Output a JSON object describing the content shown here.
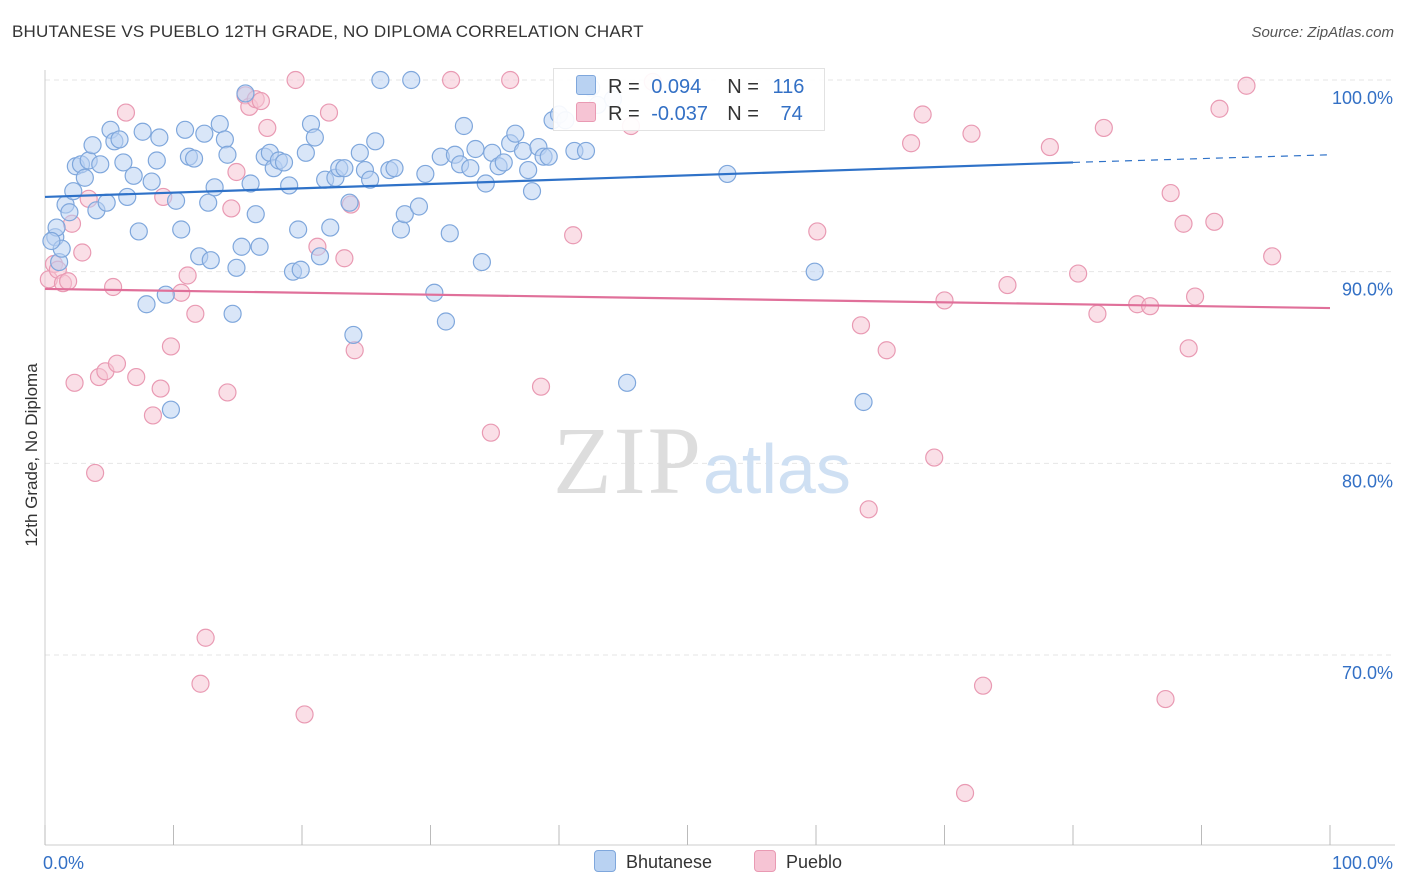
{
  "title": "BHUTANESE VS PUEBLO 12TH GRADE, NO DIPLOMA CORRELATION CHART",
  "source": "Source: ZipAtlas.com",
  "watermark": {
    "zip": "ZIP",
    "atlas": "atlas"
  },
  "legend_top": [
    {
      "r_label": "R =",
      "r_value": "0.094",
      "n_label": "N =",
      "n_value": "116"
    },
    {
      "r_label": "R =",
      "r_value": "-0.037",
      "n_label": "N =",
      "n_value": "74"
    }
  ],
  "legend_bottom": [
    "Bhutanese",
    "Pueblo"
  ],
  "colors": {
    "blue_fill": "#b9d2f2",
    "blue_stroke": "#7fa7dc",
    "blue_line": "#2f72c8",
    "pink_fill": "#f6c4d4",
    "pink_stroke": "#e99ab3",
    "pink_line": "#e0709a",
    "axis_label": "#3370c5",
    "grid": "#e6e6e6"
  },
  "chart_data": {
    "type": "scatter",
    "title": "BHUTANESE VS PUEBLO 12TH GRADE, NO DIPLOMA CORRELATION CHART",
    "xlabel": "",
    "ylabel": "12th Grade, No Diploma",
    "xlim": [
      0,
      100
    ],
    "ylim": [
      60,
      101
    ],
    "x_tick_labels": [
      {
        "value": 0,
        "label": "0.0%"
      },
      {
        "value": 100,
        "label": "100.0%"
      }
    ],
    "y_tick_labels": [
      {
        "value": 100,
        "label": "100.0%"
      },
      {
        "value": 90,
        "label": "90.0%"
      },
      {
        "value": 80,
        "label": "80.0%"
      },
      {
        "value": 70,
        "label": "70.0%"
      }
    ],
    "series": [
      {
        "name": "Bhutanese",
        "R": 0.094,
        "N": 116,
        "trend": {
          "x0": 0,
          "y0": 93.9,
          "x1": 80,
          "y1": 95.7,
          "dash_to_x": 100,
          "dash_to_y": 96.1
        },
        "points": [
          [
            0.8,
            91.8
          ],
          [
            0.9,
            92.3
          ],
          [
            1.1,
            90.5
          ],
          [
            1.3,
            91.2
          ],
          [
            1.6,
            93.5
          ],
          [
            1.9,
            93.1
          ],
          [
            2.2,
            94.2
          ],
          [
            2.4,
            95.5
          ],
          [
            2.8,
            95.6
          ],
          [
            3.1,
            94.9
          ],
          [
            3.4,
            95.8
          ],
          [
            3.7,
            96.6
          ],
          [
            4.0,
            93.2
          ],
          [
            4.3,
            95.6
          ],
          [
            4.8,
            93.6
          ],
          [
            5.1,
            97.4
          ],
          [
            5.4,
            96.8
          ],
          [
            5.8,
            96.9
          ],
          [
            6.1,
            95.7
          ],
          [
            6.4,
            93.9
          ],
          [
            6.9,
            95.0
          ],
          [
            7.3,
            92.1
          ],
          [
            7.6,
            97.3
          ],
          [
            7.9,
            88.3
          ],
          [
            8.3,
            94.7
          ],
          [
            8.7,
            95.8
          ],
          [
            8.9,
            97.0
          ],
          [
            9.4,
            88.8
          ],
          [
            9.8,
            82.8
          ],
          [
            10.2,
            93.7
          ],
          [
            10.6,
            92.2
          ],
          [
            10.9,
            97.4
          ],
          [
            11.2,
            96.0
          ],
          [
            11.6,
            95.9
          ],
          [
            12.0,
            90.8
          ],
          [
            12.4,
            97.2
          ],
          [
            12.7,
            93.6
          ],
          [
            12.9,
            90.6
          ],
          [
            13.2,
            94.4
          ],
          [
            13.6,
            97.7
          ],
          [
            14.0,
            96.9
          ],
          [
            14.2,
            96.1
          ],
          [
            14.6,
            87.8
          ],
          [
            14.9,
            90.2
          ],
          [
            15.3,
            91.3
          ],
          [
            15.6,
            99.3
          ],
          [
            16.0,
            94.6
          ],
          [
            16.4,
            93.0
          ],
          [
            16.7,
            91.3
          ],
          [
            17.1,
            96.0
          ],
          [
            17.5,
            96.2
          ],
          [
            17.8,
            95.4
          ],
          [
            18.2,
            95.8
          ],
          [
            18.6,
            95.7
          ],
          [
            19.0,
            94.5
          ],
          [
            19.3,
            90.0
          ],
          [
            19.7,
            92.2
          ],
          [
            19.9,
            90.1
          ],
          [
            20.3,
            96.2
          ],
          [
            20.7,
            97.7
          ],
          [
            21.0,
            97.0
          ],
          [
            21.4,
            90.8
          ],
          [
            21.8,
            94.8
          ],
          [
            22.2,
            92.3
          ],
          [
            22.6,
            94.9
          ],
          [
            22.9,
            95.4
          ],
          [
            23.3,
            95.4
          ],
          [
            23.7,
            93.6
          ],
          [
            24.0,
            86.7
          ],
          [
            24.5,
            96.2
          ],
          [
            24.9,
            95.3
          ],
          [
            25.3,
            94.8
          ],
          [
            25.7,
            96.8
          ],
          [
            26.1,
            100.0
          ],
          [
            26.8,
            95.3
          ],
          [
            27.2,
            95.4
          ],
          [
            27.7,
            92.2
          ],
          [
            28.0,
            93.0
          ],
          [
            28.5,
            100.0
          ],
          [
            29.1,
            93.4
          ],
          [
            29.6,
            95.1
          ],
          [
            30.3,
            88.9
          ],
          [
            30.8,
            96.0
          ],
          [
            31.2,
            87.4
          ],
          [
            31.5,
            92.0
          ],
          [
            31.9,
            96.1
          ],
          [
            32.3,
            95.6
          ],
          [
            32.6,
            97.6
          ],
          [
            33.1,
            95.4
          ],
          [
            33.5,
            96.4
          ],
          [
            34.0,
            90.5
          ],
          [
            34.3,
            94.6
          ],
          [
            34.8,
            96.2
          ],
          [
            35.3,
            95.5
          ],
          [
            35.7,
            95.7
          ],
          [
            36.2,
            96.7
          ],
          [
            36.6,
            97.2
          ],
          [
            37.2,
            96.3
          ],
          [
            37.6,
            95.3
          ],
          [
            37.9,
            94.2
          ],
          [
            38.4,
            96.5
          ],
          [
            38.8,
            96.0
          ],
          [
            39.2,
            96.0
          ],
          [
            39.5,
            97.9
          ],
          [
            40.0,
            98.2
          ],
          [
            40.5,
            97.9
          ],
          [
            41.2,
            96.3
          ],
          [
            42.1,
            96.3
          ],
          [
            42.5,
            99.6
          ],
          [
            43.0,
            98.7
          ],
          [
            44.2,
            99.0
          ],
          [
            45.3,
            84.2
          ],
          [
            53.1,
            95.1
          ],
          [
            59.9,
            90.0
          ],
          [
            63.7,
            83.2
          ],
          [
            0.5,
            91.6
          ]
        ]
      },
      {
        "name": "Pueblo",
        "R": -0.037,
        "N": 74,
        "trend": {
          "x0": 0,
          "y0": 89.1,
          "x1": 100,
          "y1": 88.1
        },
        "points": [
          [
            0.3,
            89.6
          ],
          [
            0.7,
            90.4
          ],
          [
            1.0,
            90.1
          ],
          [
            1.4,
            89.4
          ],
          [
            1.8,
            89.5
          ],
          [
            2.1,
            92.5
          ],
          [
            2.3,
            84.2
          ],
          [
            2.9,
            91.0
          ],
          [
            3.4,
            93.8
          ],
          [
            3.9,
            79.5
          ],
          [
            4.2,
            84.5
          ],
          [
            4.7,
            84.8
          ],
          [
            5.3,
            89.2
          ],
          [
            5.6,
            85.2
          ],
          [
            6.3,
            98.3
          ],
          [
            7.1,
            84.5
          ],
          [
            8.4,
            82.5
          ],
          [
            9.0,
            83.9
          ],
          [
            9.2,
            93.9
          ],
          [
            9.8,
            86.1
          ],
          [
            10.6,
            88.9
          ],
          [
            11.1,
            89.8
          ],
          [
            11.7,
            87.8
          ],
          [
            12.1,
            68.5
          ],
          [
            12.5,
            70.9
          ],
          [
            14.2,
            83.7
          ],
          [
            14.5,
            93.3
          ],
          [
            14.9,
            95.2
          ],
          [
            15.6,
            99.2
          ],
          [
            15.9,
            98.6
          ],
          [
            16.4,
            99.0
          ],
          [
            16.8,
            98.9
          ],
          [
            17.3,
            97.5
          ],
          [
            19.5,
            100.0
          ],
          [
            20.2,
            66.9
          ],
          [
            21.2,
            91.3
          ],
          [
            22.1,
            98.3
          ],
          [
            23.3,
            90.7
          ],
          [
            23.8,
            93.5
          ],
          [
            24.1,
            85.9
          ],
          [
            31.6,
            100.0
          ],
          [
            34.7,
            81.6
          ],
          [
            36.2,
            100.0
          ],
          [
            38.6,
            84.0
          ],
          [
            41.1,
            91.9
          ],
          [
            45.6,
            97.6
          ],
          [
            47.3,
            99.9
          ],
          [
            60.1,
            92.1
          ],
          [
            63.5,
            87.2
          ],
          [
            64.1,
            77.6
          ],
          [
            65.5,
            85.9
          ],
          [
            67.4,
            96.7
          ],
          [
            68.3,
            98.2
          ],
          [
            69.2,
            80.3
          ],
          [
            70.0,
            88.5
          ],
          [
            71.6,
            62.8
          ],
          [
            72.1,
            97.2
          ],
          [
            73.0,
            68.4
          ],
          [
            74.9,
            89.3
          ],
          [
            78.2,
            96.5
          ],
          [
            80.4,
            89.9
          ],
          [
            81.9,
            87.8
          ],
          [
            82.4,
            97.5
          ],
          [
            85.0,
            88.3
          ],
          [
            86.0,
            88.2
          ],
          [
            87.2,
            67.7
          ],
          [
            87.6,
            94.1
          ],
          [
            88.6,
            92.5
          ],
          [
            89.0,
            86.0
          ],
          [
            89.5,
            88.7
          ],
          [
            91.0,
            92.6
          ],
          [
            91.4,
            98.5
          ],
          [
            93.5,
            99.7
          ],
          [
            95.5,
            90.8
          ]
        ]
      }
    ]
  }
}
